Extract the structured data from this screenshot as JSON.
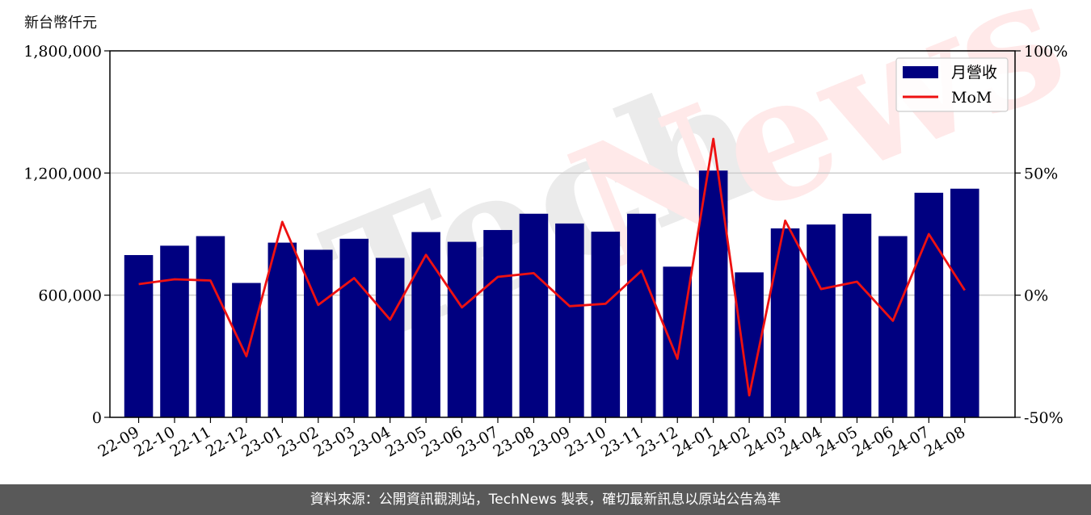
{
  "unit_label": "新台幣仟元",
  "footer_text": "資料來源：公開資訊觀測站，TechNews 製表，確切最新訊息以原站公告為準",
  "colors": {
    "bar": "#000080",
    "line": "#ee1111",
    "grid": "#cccccc",
    "footer_bg": "#595959"
  },
  "chart_data": {
    "type": "bar",
    "categories": [
      "22-09",
      "22-10",
      "22-11",
      "22-12",
      "23-01",
      "23-02",
      "23-03",
      "23-04",
      "23-05",
      "23-06",
      "23-07",
      "23-08",
      "23-09",
      "23-10",
      "23-11",
      "23-12",
      "24-01",
      "24-02",
      "24-03",
      "24-04",
      "24-05",
      "24-06",
      "24-07",
      "24-08"
    ],
    "series": [
      {
        "name": "月營收",
        "kind": "bar",
        "axis": "left",
        "values": [
          797000,
          843000,
          890000,
          660000,
          858000,
          823000,
          877000,
          783000,
          910000,
          862000,
          920000,
          1000000,
          952000,
          912000,
          1000000,
          740000,
          1212000,
          712000,
          928000,
          947000,
          1000000,
          890000,
          1103000,
          1123000
        ]
      },
      {
        "name": "MoM",
        "kind": "line",
        "axis": "right",
        "values": [
          4.5,
          6.5,
          6.0,
          -25.0,
          30.0,
          -4.0,
          7.0,
          -10.0,
          16.5,
          -5.0,
          7.5,
          9.0,
          -4.5,
          -3.5,
          10.0,
          -26.0,
          64.0,
          -41.0,
          30.5,
          2.5,
          5.5,
          -10.5,
          25.0,
          2.0
        ]
      }
    ],
    "y_left": {
      "ylim": [
        0,
        1800000
      ],
      "ticks": [
        0,
        600000,
        1200000,
        1800000
      ],
      "tick_labels": [
        "0",
        "600,000",
        "1,200,000",
        "1,800,000"
      ]
    },
    "y_right": {
      "ylim": [
        -50,
        100
      ],
      "ticks": [
        -50,
        0,
        50,
        100
      ],
      "tick_labels": [
        "-50%",
        "0%",
        "50%",
        "100%"
      ]
    },
    "grid": "horizontal",
    "legend_position": "top-right"
  }
}
